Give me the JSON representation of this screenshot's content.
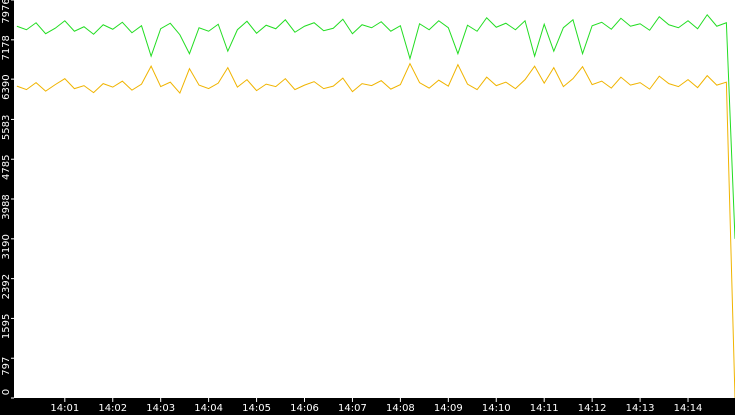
{
  "chart_data": {
    "type": "line",
    "x": [
      840,
      840.2,
      840.4,
      840.6,
      840.8,
      841,
      841.2,
      841.4,
      841.6,
      841.8,
      842,
      842.2,
      842.4,
      842.6,
      842.8,
      843,
      843.2,
      843.4,
      843.6,
      843.8,
      844,
      844.2,
      844.4,
      844.6,
      844.8,
      845,
      845.2,
      845.4,
      845.6,
      845.8,
      846,
      846.2,
      846.4,
      846.6,
      846.8,
      847,
      847.2,
      847.4,
      847.6,
      847.8,
      848,
      848.2,
      848.4,
      848.6,
      848.8,
      849,
      849.2,
      849.4,
      849.6,
      849.8,
      850,
      850.2,
      850.4,
      850.6,
      850.8,
      851,
      851.2,
      851.4,
      851.6,
      851.8,
      852,
      852.2,
      852.4,
      852.6,
      852.8,
      853,
      853.2,
      853.4,
      853.6,
      853.8,
      854,
      854.2,
      854.4,
      854.6,
      854.8,
      854.98
    ],
    "series": [
      {
        "color": "#22dd22",
        "values": [
          7450,
          7380,
          7520,
          7300,
          7410,
          7560,
          7350,
          7440,
          7290,
          7480,
          7390,
          7530,
          7320,
          7460,
          6850,
          7400,
          7510,
          7280,
          6900,
          7420,
          7350,
          7490,
          6950,
          7380,
          7550,
          7310,
          7470,
          7400,
          7580,
          7330,
          7450,
          7520,
          7360,
          7410,
          7590,
          7300,
          7480,
          7420,
          7540,
          7350,
          7460,
          6800,
          7500,
          7380,
          7560,
          7420,
          6900,
          7470,
          7350,
          7620,
          7430,
          7510,
          7380,
          7560,
          6850,
          7490,
          6950,
          7420,
          7580,
          6900,
          7460,
          7530,
          7390,
          7610,
          7450,
          7500,
          7370,
          7640,
          7480,
          7420,
          7560,
          7400,
          7680,
          7450,
          7520,
          3190
        ]
      },
      {
        "color": "#f0b400",
        "values": [
          6250,
          6180,
          6320,
          6150,
          6280,
          6400,
          6200,
          6260,
          6120,
          6300,
          6230,
          6350,
          6170,
          6290,
          6650,
          6240,
          6330,
          6110,
          6600,
          6270,
          6200,
          6310,
          6620,
          6230,
          6380,
          6160,
          6290,
          6240,
          6400,
          6180,
          6270,
          6340,
          6200,
          6250,
          6410,
          6140,
          6300,
          6260,
          6360,
          6190,
          6280,
          6700,
          6320,
          6210,
          6370,
          6250,
          6680,
          6290,
          6180,
          6430,
          6260,
          6330,
          6200,
          6380,
          6650,
          6310,
          6620,
          6240,
          6400,
          6640,
          6280,
          6350,
          6210,
          6430,
          6270,
          6320,
          6190,
          6450,
          6300,
          6240,
          6380,
          6220,
          6460,
          6270,
          6330,
          0
        ]
      }
    ],
    "xlim": [
      839.94,
      854.98
    ],
    "xticks": [
      {
        "value": 841,
        "label": "14:01"
      },
      {
        "value": 842,
        "label": "14:02"
      },
      {
        "value": 843,
        "label": "14:03"
      },
      {
        "value": 844,
        "label": "14:04"
      },
      {
        "value": 845,
        "label": "14:05"
      },
      {
        "value": 846,
        "label": "14:06"
      },
      {
        "value": 847,
        "label": "14:07"
      },
      {
        "value": 848,
        "label": "14:08"
      },
      {
        "value": 849,
        "label": "14:09"
      },
      {
        "value": 850,
        "label": "14:10"
      },
      {
        "value": 851,
        "label": "14:11"
      },
      {
        "value": 852,
        "label": "14:12"
      },
      {
        "value": 853,
        "label": "14:13"
      },
      {
        "value": 854,
        "label": "14:14"
      }
    ],
    "ylim": [
      0,
      7976
    ],
    "yticks": [
      0,
      797,
      1595,
      2392,
      3190,
      3988,
      4785,
      5583,
      6390,
      7178,
      7976
    ]
  }
}
